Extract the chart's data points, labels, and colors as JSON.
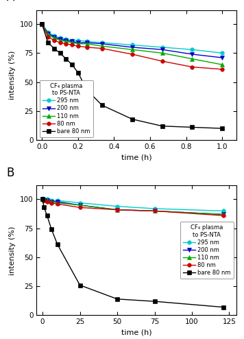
{
  "panel_A": {
    "title": "A",
    "xlabel": "time (h)",
    "ylabel": "intensity (%)",
    "xlim": [
      -0.03,
      1.08
    ],
    "ylim": [
      0,
      112
    ],
    "yticks": [
      0,
      25,
      50,
      75,
      100
    ],
    "xticks": [
      0.0,
      0.2,
      0.4,
      0.6,
      0.8,
      1.0
    ],
    "series": {
      "295 nm": {
        "color": "#00CCCC",
        "marker": "o",
        "linestyle": "-",
        "x": [
          0.0,
          0.033,
          0.067,
          0.1,
          0.133,
          0.167,
          0.2,
          0.25,
          0.333,
          0.5,
          0.667,
          0.833,
          1.0
        ],
        "y": [
          100,
          93,
          90,
          88,
          87,
          86,
          86,
          85,
          84,
          82,
          80,
          78,
          75
        ]
      },
      "200 nm": {
        "color": "#0000CC",
        "marker": "v",
        "linestyle": "-",
        "x": [
          0.0,
          0.033,
          0.067,
          0.1,
          0.133,
          0.167,
          0.2,
          0.25,
          0.333,
          0.5,
          0.667,
          0.833,
          1.0
        ],
        "y": [
          100,
          92,
          89,
          87,
          86,
          85,
          84,
          84,
          83,
          80,
          78,
          74,
          71
        ]
      },
      "110 nm": {
        "color": "#00AA00",
        "marker": "^",
        "linestyle": "-",
        "x": [
          0.0,
          0.033,
          0.067,
          0.1,
          0.133,
          0.167,
          0.2,
          0.25,
          0.333,
          0.5,
          0.667,
          0.833,
          1.0
        ],
        "y": [
          100,
          91,
          88,
          86,
          85,
          84,
          83,
          83,
          81,
          78,
          75,
          70,
          65
        ]
      },
      "80 nm": {
        "color": "#CC0000",
        "marker": "o",
        "linestyle": "-",
        "x": [
          0.0,
          0.033,
          0.067,
          0.1,
          0.133,
          0.167,
          0.2,
          0.25,
          0.333,
          0.5,
          0.667,
          0.833,
          1.0
        ],
        "y": [
          100,
          89,
          86,
          84,
          83,
          82,
          81,
          80,
          79,
          74,
          68,
          63,
          61
        ]
      },
      "bare 80 nm": {
        "color": "#000000",
        "marker": "s",
        "linestyle": "-",
        "x": [
          0.0,
          0.033,
          0.067,
          0.1,
          0.133,
          0.167,
          0.2,
          0.25,
          0.333,
          0.5,
          0.667,
          0.833,
          1.0
        ],
        "y": [
          100,
          84,
          79,
          75,
          70,
          65,
          58,
          43,
          30,
          18,
          12,
          11,
          10
        ]
      }
    },
    "legend": {
      "title": "CF₄ plasma\nto PS-NTA",
      "loc": "lower left"
    }
  },
  "panel_B": {
    "title": "B",
    "xlabel": "time (h)",
    "ylabel": "intensity (%)",
    "xlim": [
      -4,
      130
    ],
    "ylim": [
      0,
      112
    ],
    "yticks": [
      0,
      25,
      50,
      75,
      100
    ],
    "xticks": [
      0,
      25,
      50,
      75,
      100,
      125
    ],
    "series": {
      "295 nm": {
        "color": "#00CCCC",
        "marker": "o",
        "linestyle": "-",
        "x": [
          0,
          1,
          3,
          6,
          10,
          25,
          50,
          75,
          121
        ],
        "y": [
          101,
          100,
          100,
          99,
          99,
          97,
          94,
          92,
          90
        ]
      },
      "200 nm": {
        "color": "#0000CC",
        "marker": "v",
        "linestyle": "-",
        "x": [
          0,
          1,
          3,
          6,
          10,
          25,
          50,
          75,
          121
        ],
        "y": [
          100,
          99,
          99,
          98,
          98,
          95,
          91,
          90,
          87
        ]
      },
      "110 nm": {
        "color": "#00AA00",
        "marker": "^",
        "linestyle": "-",
        "x": [
          0,
          1,
          3,
          6,
          10,
          25,
          50,
          75,
          121
        ],
        "y": [
          100,
          99,
          99,
          98,
          97,
          95,
          91,
          90,
          87
        ]
      },
      "80 nm": {
        "color": "#CC0000",
        "marker": "o",
        "linestyle": "-",
        "x": [
          0,
          1,
          3,
          6,
          10,
          25,
          50,
          75,
          121
        ],
        "y": [
          100,
          99,
          98,
          97,
          96,
          93,
          91,
          90,
          86
        ]
      },
      "bare 80 nm": {
        "color": "#000000",
        "marker": "s",
        "linestyle": "-",
        "x": [
          0,
          1,
          3,
          6,
          10,
          25,
          50,
          75,
          121
        ],
        "y": [
          100,
          93,
          86,
          74,
          61,
          26,
          14,
          12,
          7
        ]
      }
    },
    "legend": {
      "title": "CF₄ plasma\nto PS-NTA",
      "loc": "center right"
    }
  },
  "background_color": "#ffffff",
  "markersize": 4,
  "linewidth": 1.0
}
